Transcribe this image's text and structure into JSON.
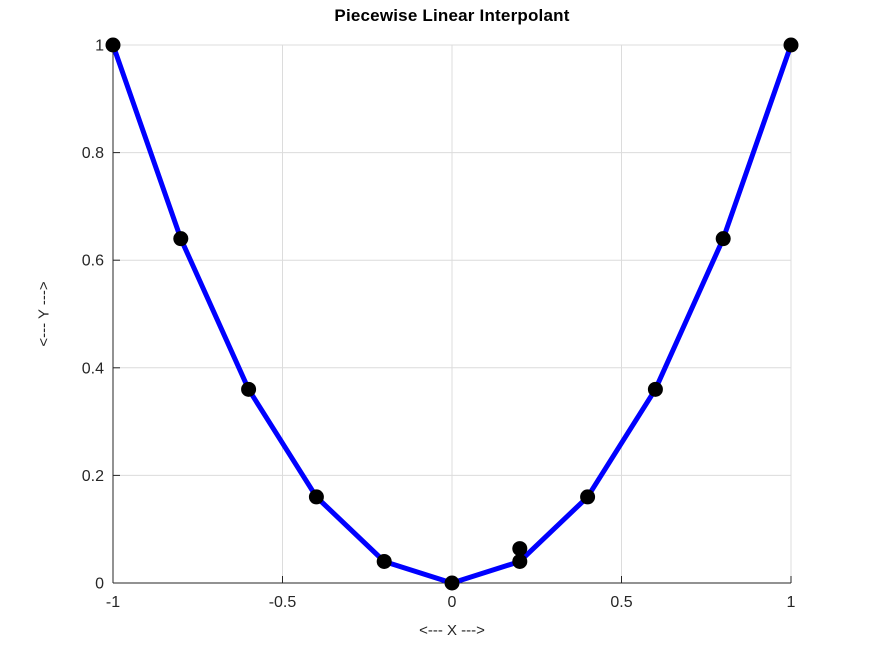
{
  "figure": {
    "background": "#ffffff"
  },
  "chart_data": {
    "type": "line",
    "title": "Piecewise Linear Interpolant",
    "xlabel": "<--- X --->",
    "ylabel": "<--- Y --->",
    "x": [
      -1,
      -0.8,
      -0.6,
      -0.4,
      -0.2,
      0,
      0.2,
      0.4,
      0.6,
      0.8,
      1
    ],
    "y": [
      1,
      0.64,
      0.36,
      0.16,
      0.04,
      0,
      0.04,
      0.16,
      0.36,
      0.64,
      1
    ],
    "extra_point": {
      "x": 0.2,
      "y": 0.064
    },
    "xlim": [
      -1,
      1
    ],
    "ylim": [
      0,
      1
    ],
    "xticks": [
      -1,
      -0.5,
      0,
      0.5,
      1
    ],
    "xtick_labels": [
      "-1",
      "-0.5",
      "0",
      "0.5",
      "1"
    ],
    "yticks": [
      0,
      0.2,
      0.4,
      0.6,
      0.8,
      1
    ],
    "ytick_labels": [
      "0",
      "0.2",
      "0.4",
      "0.6",
      "0.8",
      "1"
    ],
    "grid": true,
    "legend": null,
    "line_color": "#0000ff",
    "line_width": 5,
    "marker_color": "#000000",
    "marker_radius": 7.5,
    "grid_color": "#dcdcdc",
    "axis_color": "#262626"
  }
}
